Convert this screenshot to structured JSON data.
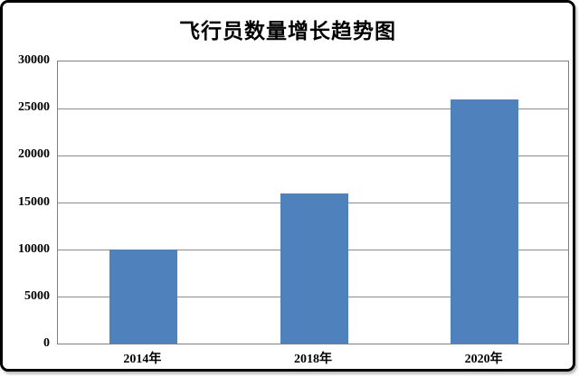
{
  "window": {
    "background_color": "#ffffff",
    "border_color": "#000000"
  },
  "chart_data": {
    "type": "bar",
    "title": "飞行员数量增长趋势图",
    "categories": [
      "2014年",
      "2018年",
      "2020年"
    ],
    "values": [
      10000,
      16000,
      26000
    ],
    "xlabel": "",
    "ylabel": "",
    "ylim": [
      0,
      30000
    ],
    "yticks": [
      0,
      5000,
      10000,
      15000,
      20000,
      25000,
      30000
    ],
    "grid": "horizontal gridlines on",
    "legend_position": "none",
    "bar_color": "#4F81BD",
    "gridline_color": "#8c8c8c",
    "axis_frame_color": "#7f7f7f",
    "text_color": "#000000"
  }
}
